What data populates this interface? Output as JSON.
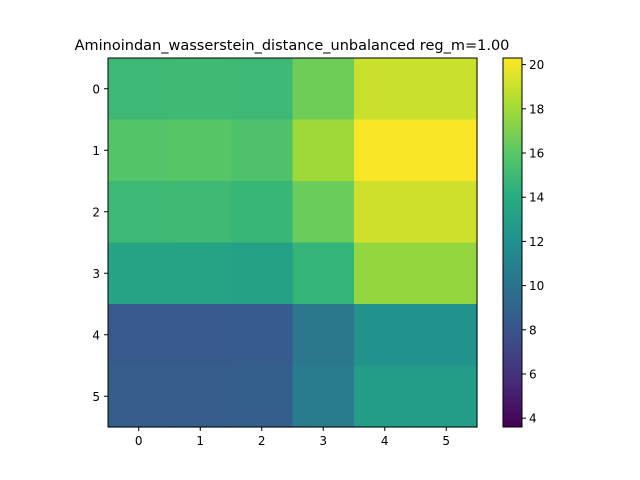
{
  "chart_data": {
    "type": "heatmap",
    "title": "Aminoindan_wasserstein_distance_unbalanced reg_m=1.00",
    "xlabel": "",
    "ylabel": "",
    "x_ticks": [
      "0",
      "1",
      "2",
      "3",
      "4",
      "5"
    ],
    "y_ticks": [
      "0",
      "1",
      "2",
      "3",
      "4",
      "5"
    ],
    "values": [
      [
        14.9,
        15.0,
        14.9,
        16.6,
        19.0,
        19.0
      ],
      [
        15.8,
        15.9,
        15.6,
        17.9,
        20.2,
        20.2
      ],
      [
        14.9,
        15.0,
        14.7,
        16.5,
        19.1,
        19.1
      ],
      [
        13.3,
        13.3,
        13.2,
        14.6,
        17.6,
        17.6
      ],
      [
        8.3,
        8.3,
        8.4,
        10.3,
        12.1,
        12.1
      ],
      [
        8.6,
        8.6,
        8.7,
        10.6,
        12.8,
        12.8
      ]
    ],
    "colormap": "viridis",
    "colorbar": {
      "vmin": 3.6,
      "vmax": 20.3,
      "ticks": [
        "4",
        "6",
        "8",
        "10",
        "12",
        "14",
        "16",
        "18",
        "20"
      ]
    },
    "grid": false
  }
}
